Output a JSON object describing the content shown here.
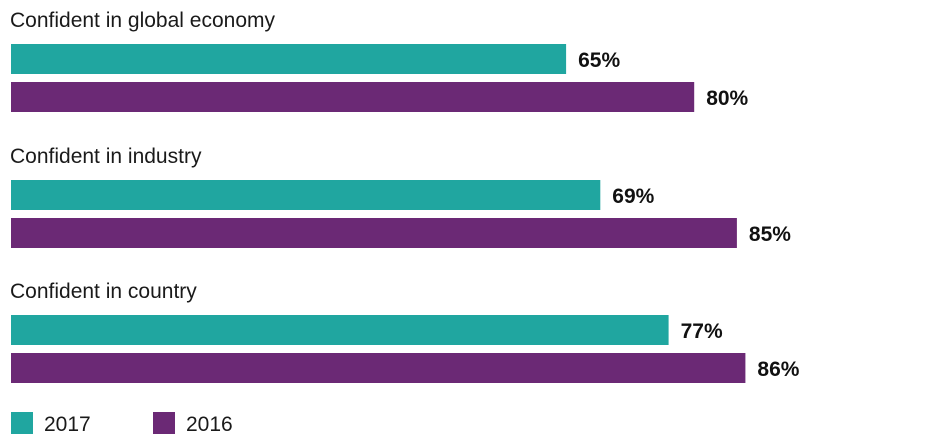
{
  "chart_data": {
    "type": "bar",
    "orientation": "horizontal",
    "categories": [
      "Confident in global economy",
      "Confident in industry",
      "Confident in country"
    ],
    "series": [
      {
        "name": "2017",
        "values": [
          65,
          69,
          77
        ],
        "labels": [
          "65%",
          "69%",
          "77%"
        ],
        "color": "#20a6a0"
      },
      {
        "name": "2016",
        "values": [
          80,
          85,
          86
        ],
        "labels": [
          "80%",
          "85%",
          "86%"
        ],
        "color": "#6b2975"
      }
    ],
    "xlim": [
      0,
      100
    ],
    "unit": "%",
    "grid": false,
    "legend": "bottom-left"
  }
}
